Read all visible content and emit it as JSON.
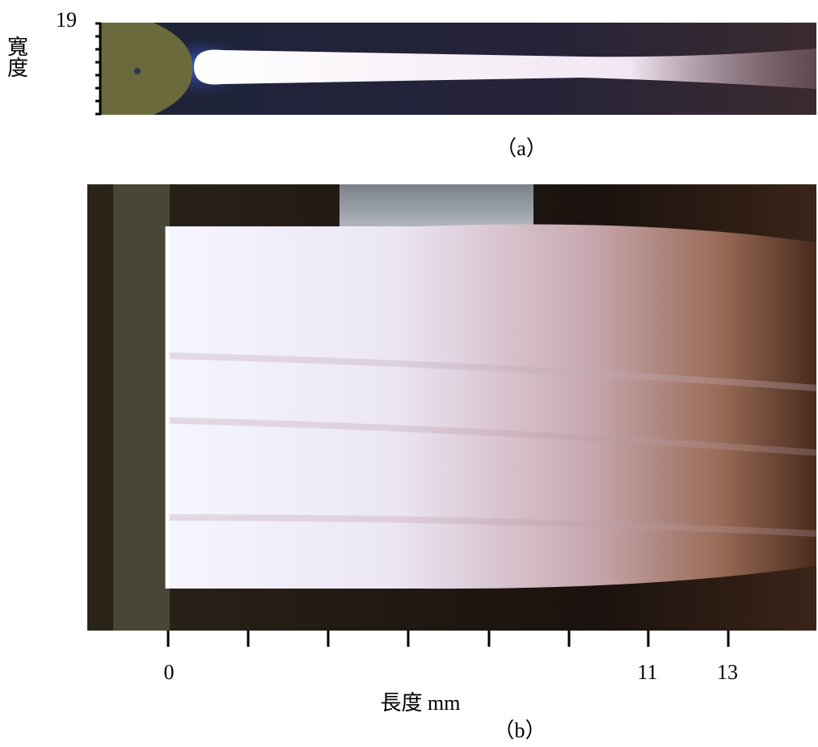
{
  "panel_a": {
    "y_tick_label": 19,
    "y_label": "寬度",
    "caption": "（a）"
  },
  "panel_b": {
    "x_tick_labels": [
      0,
      11,
      13
    ],
    "x_label": "長度 mm",
    "caption": "（b）"
  }
}
